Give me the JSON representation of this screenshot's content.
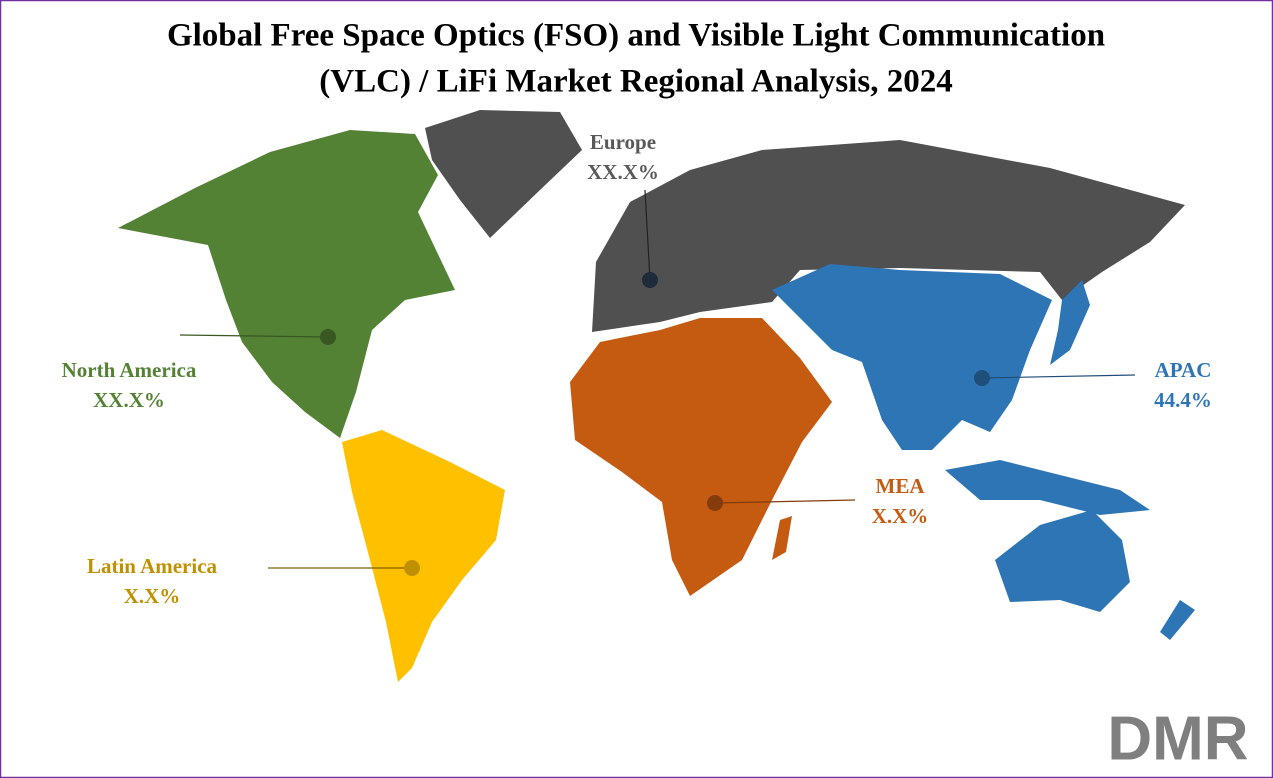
{
  "title": [
    "Global Free Space Optics (FSO) and Visible Light Communication",
    "(VLC) / LiFi Market Regional Analysis, 2024"
  ],
  "regions": [
    {
      "name": "North America",
      "value": "XX.X%",
      "color": "#548235"
    },
    {
      "name": "Latin America",
      "value": "X.X%",
      "color": "#bf9000"
    },
    {
      "name": "Europe",
      "value": "XX.X%",
      "color": "#595959"
    },
    {
      "name": "MEA",
      "value": "X.X%",
      "color": "#c55a11"
    },
    {
      "name": "APAC",
      "value": "44.4%",
      "color": "#2e75b6"
    }
  ],
  "logo": "DMR"
}
